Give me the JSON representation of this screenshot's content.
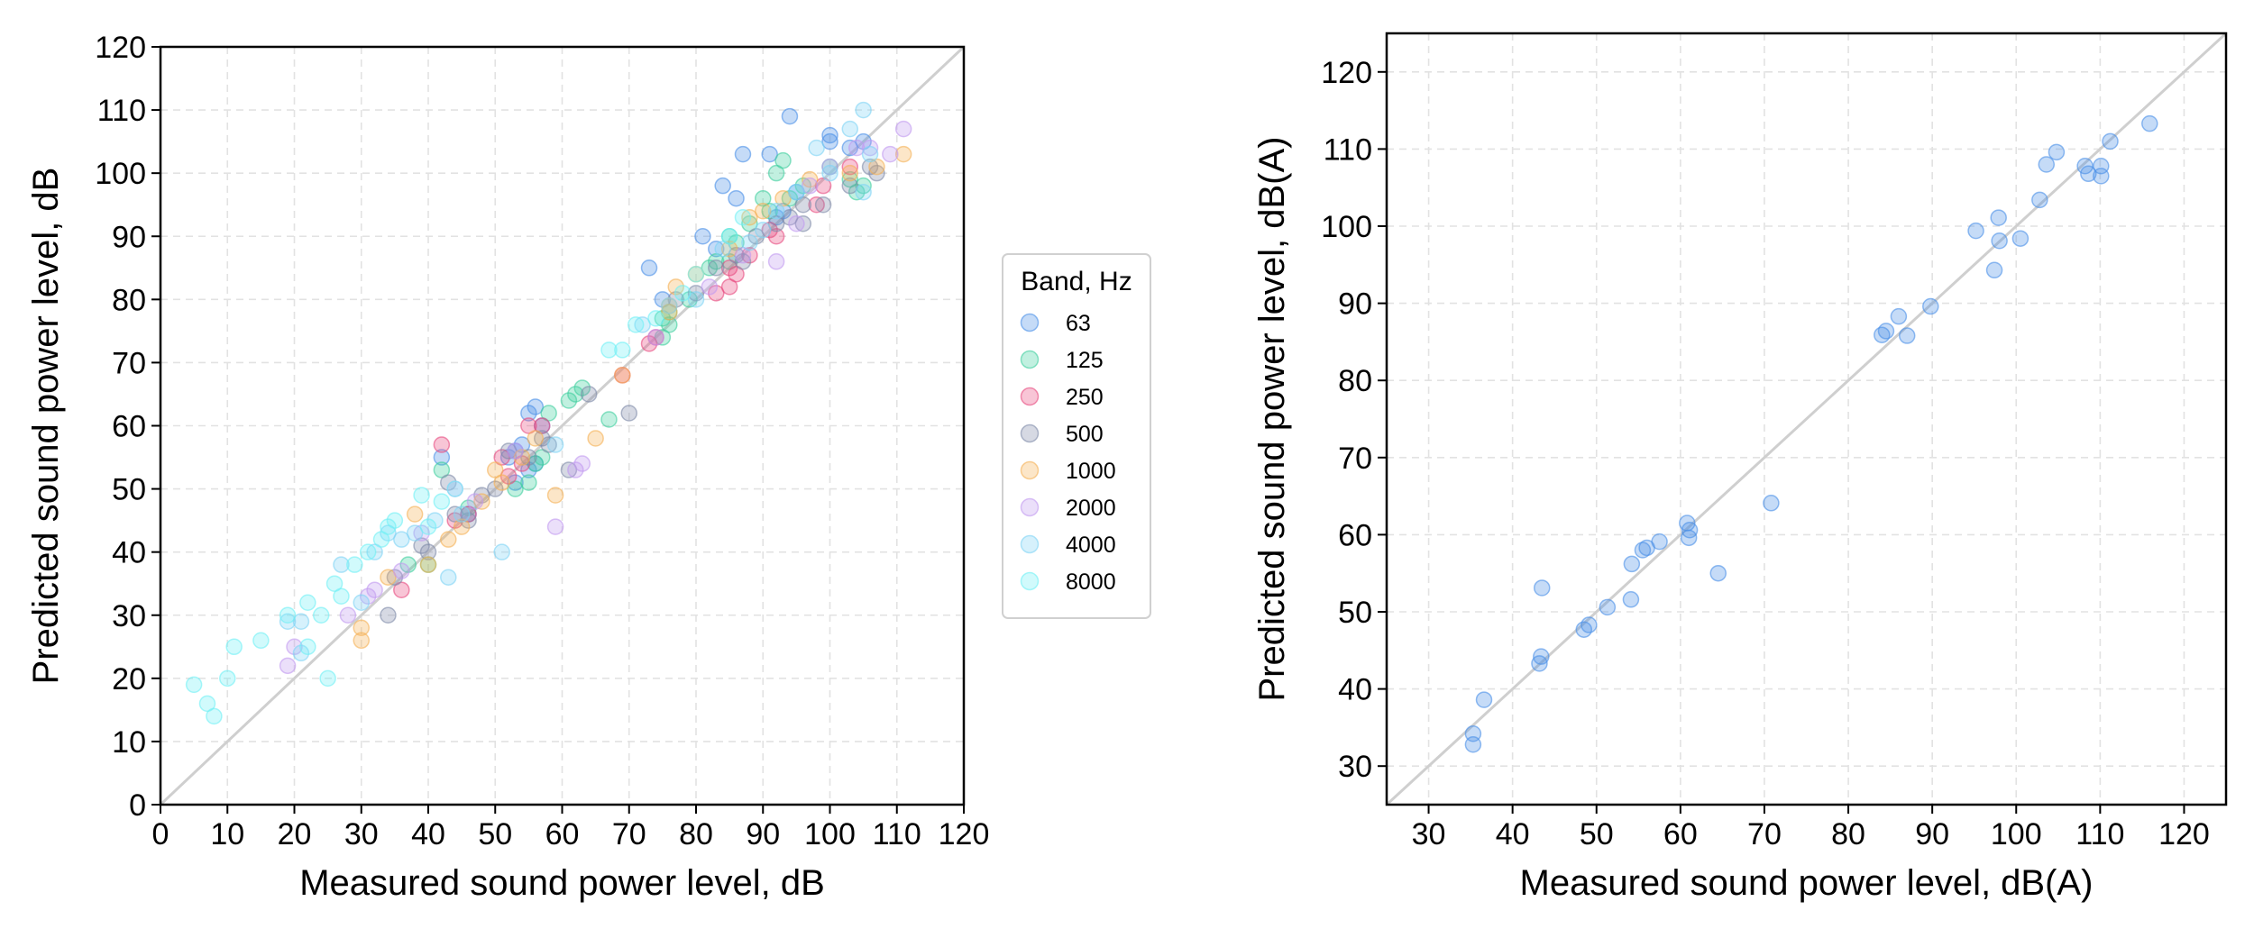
{
  "chart_data": [
    {
      "type": "scatter",
      "xlabel": "Measured sound power level, dB",
      "ylabel": "Predicted sound power level, dB",
      "xlim": [
        0,
        120
      ],
      "ylim": [
        0,
        120
      ],
      "xticks": [
        0,
        10,
        20,
        30,
        40,
        50,
        60,
        70,
        80,
        90,
        100,
        110,
        120
      ],
      "yticks": [
        0,
        10,
        20,
        30,
        40,
        50,
        60,
        70,
        80,
        90,
        100,
        110,
        120
      ],
      "grid": true,
      "reference_line": "y = x",
      "legend": {
        "title": "Band, Hz",
        "placement": "outside-right"
      },
      "series": [
        {
          "name": "63",
          "color": "#4a8fe7",
          "points": [
            [
              55,
              62
            ],
            [
              56,
              63
            ],
            [
              54,
              57
            ],
            [
              53,
              56
            ],
            [
              56,
              54
            ],
            [
              73,
              85
            ],
            [
              75,
              80
            ],
            [
              84,
              98
            ],
            [
              86,
              96
            ],
            [
              87,
              103
            ],
            [
              91,
              103
            ],
            [
              94,
              109
            ],
            [
              100,
              106
            ],
            [
              100,
              105
            ],
            [
              103,
              104
            ],
            [
              105,
              105
            ],
            [
              93,
              94
            ],
            [
              92,
              93
            ],
            [
              95,
              97
            ],
            [
              83,
              88
            ],
            [
              81,
              90
            ],
            [
              57,
              60
            ],
            [
              52,
              55
            ],
            [
              55,
              53
            ],
            [
              42,
              55
            ],
            [
              46,
              46
            ],
            [
              53,
              51
            ]
          ]
        },
        {
          "name": "125",
          "color": "#3fcf9f",
          "points": [
            [
              42,
              53
            ],
            [
              46,
              47
            ],
            [
              55,
              51
            ],
            [
              57,
              55
            ],
            [
              58,
              62
            ],
            [
              61,
              64
            ],
            [
              62,
              65
            ],
            [
              63,
              66
            ],
            [
              67,
              61
            ],
            [
              75,
              77
            ],
            [
              76,
              76
            ],
            [
              79,
              80
            ],
            [
              83,
              86
            ],
            [
              85,
              90
            ],
            [
              86,
              89
            ],
            [
              88,
              92
            ],
            [
              90,
              96
            ],
            [
              92,
              100
            ],
            [
              94,
              96
            ],
            [
              96,
              98
            ],
            [
              100,
              101
            ],
            [
              103,
              99
            ],
            [
              105,
              98
            ],
            [
              104,
              97
            ],
            [
              75,
              74
            ],
            [
              76,
              78
            ],
            [
              82,
              85
            ],
            [
              85,
              86
            ],
            [
              91,
              94
            ],
            [
              93,
              102
            ],
            [
              37,
              38
            ],
            [
              40,
              38
            ],
            [
              53,
              50
            ],
            [
              56,
              54
            ]
          ]
        },
        {
          "name": "250",
          "color": "#e84a7f",
          "points": [
            [
              36,
              34
            ],
            [
              42,
              57
            ],
            [
              44,
              45
            ],
            [
              46,
              46
            ],
            [
              51,
              55
            ],
            [
              52,
              52
            ],
            [
              55,
              60
            ],
            [
              57,
              60
            ],
            [
              69,
              68
            ],
            [
              73,
              73
            ],
            [
              74,
              74
            ],
            [
              83,
              81
            ],
            [
              85,
              82
            ],
            [
              85,
              85
            ],
            [
              88,
              87
            ],
            [
              91,
              91
            ],
            [
              92,
              90
            ],
            [
              98,
              95
            ],
            [
              99,
              98
            ],
            [
              103,
              101
            ],
            [
              86,
              84
            ],
            [
              54,
              54
            ]
          ]
        },
        {
          "name": "500",
          "color": "#7f8aa8",
          "points": [
            [
              34,
              30
            ],
            [
              35,
              36
            ],
            [
              39,
              41
            ],
            [
              40,
              40
            ],
            [
              43,
              51
            ],
            [
              46,
              45
            ],
            [
              50,
              50
            ],
            [
              52,
              56
            ],
            [
              55,
              55
            ],
            [
              57,
              58
            ],
            [
              58,
              57
            ],
            [
              61,
              53
            ],
            [
              64,
              65
            ],
            [
              70,
              62
            ],
            [
              77,
              80
            ],
            [
              80,
              81
            ],
            [
              83,
              85
            ],
            [
              86,
              87
            ],
            [
              87,
              86
            ],
            [
              89,
              90
            ],
            [
              92,
              92
            ],
            [
              96,
              92
            ],
            [
              96,
              95
            ],
            [
              99,
              95
            ],
            [
              103,
              98
            ],
            [
              106,
              101
            ],
            [
              107,
              100
            ],
            [
              94,
              93
            ],
            [
              48,
              49
            ],
            [
              44,
              46
            ]
          ]
        },
        {
          "name": "1000",
          "color": "#f5b055",
          "points": [
            [
              30,
              26
            ],
            [
              30,
              28
            ],
            [
              38,
              46
            ],
            [
              40,
              38
            ],
            [
              43,
              42
            ],
            [
              48,
              48
            ],
            [
              50,
              53
            ],
            [
              51,
              51
            ],
            [
              54,
              55
            ],
            [
              56,
              58
            ],
            [
              59,
              49
            ],
            [
              65,
              58
            ],
            [
              69,
              68
            ],
            [
              76,
              79
            ],
            [
              77,
              82
            ],
            [
              80,
              84
            ],
            [
              85,
              88
            ],
            [
              88,
              93
            ],
            [
              90,
              94
            ],
            [
              93,
              96
            ],
            [
              97,
              99
            ],
            [
              103,
              100
            ],
            [
              107,
              101
            ],
            [
              111,
              103
            ],
            [
              34,
              36
            ],
            [
              45,
              44
            ],
            [
              76,
              78
            ]
          ]
        },
        {
          "name": "2000",
          "color": "#c29af0",
          "points": [
            [
              19,
              22
            ],
            [
              20,
              25
            ],
            [
              28,
              30
            ],
            [
              31,
              33
            ],
            [
              36,
              37
            ],
            [
              39,
              43
            ],
            [
              47,
              48
            ],
            [
              53,
              56
            ],
            [
              59,
              44
            ],
            [
              62,
              53
            ],
            [
              63,
              54
            ],
            [
              74,
              74
            ],
            [
              82,
              82
            ],
            [
              87,
              87
            ],
            [
              92,
              86
            ],
            [
              95,
              92
            ],
            [
              97,
              98
            ],
            [
              100,
              101
            ],
            [
              104,
              104
            ],
            [
              106,
              104
            ],
            [
              109,
              103
            ],
            [
              111,
              107
            ],
            [
              32,
              34
            ],
            [
              44,
              50
            ]
          ]
        },
        {
          "name": "4000",
          "color": "#7fd3f5",
          "points": [
            [
              19,
              29
            ],
            [
              21,
              29
            ],
            [
              21,
              24
            ],
            [
              27,
              38
            ],
            [
              32,
              40
            ],
            [
              36,
              42
            ],
            [
              38,
              43
            ],
            [
              41,
              45
            ],
            [
              43,
              36
            ],
            [
              45,
              46
            ],
            [
              51,
              40
            ],
            [
              59,
              57
            ],
            [
              72,
              76
            ],
            [
              76,
              79
            ],
            [
              80,
              80
            ],
            [
              84,
              88
            ],
            [
              88,
              89
            ],
            [
              90,
              91
            ],
            [
              92,
              94
            ],
            [
              95,
              97
            ],
            [
              98,
              104
            ],
            [
              100,
              100
            ],
            [
              103,
              107
            ],
            [
              105,
              97
            ],
            [
              105,
              110
            ],
            [
              106,
              103
            ],
            [
              30,
              32
            ],
            [
              34,
              43
            ]
          ]
        },
        {
          "name": "8000",
          "color": "#6ff0f5",
          "points": [
            [
              5,
              19
            ],
            [
              7,
              16
            ],
            [
              8,
              14
            ],
            [
              10,
              20
            ],
            [
              11,
              25
            ],
            [
              15,
              26
            ],
            [
              19,
              30
            ],
            [
              22,
              32
            ],
            [
              25,
              20
            ],
            [
              26,
              35
            ],
            [
              27,
              33
            ],
            [
              29,
              38
            ],
            [
              31,
              40
            ],
            [
              34,
              44
            ],
            [
              35,
              45
            ],
            [
              39,
              49
            ],
            [
              40,
              44
            ],
            [
              42,
              48
            ],
            [
              44,
              50
            ],
            [
              67,
              72
            ],
            [
              69,
              72
            ],
            [
              71,
              76
            ],
            [
              74,
              77
            ],
            [
              78,
              81
            ],
            [
              80,
              84
            ],
            [
              85,
              90
            ],
            [
              87,
              93
            ],
            [
              22,
              25
            ],
            [
              33,
              42
            ],
            [
              24,
              30
            ]
          ]
        }
      ]
    },
    {
      "type": "scatter",
      "xlabel": "Measured sound power level, dB(A)",
      "ylabel": "Predicted sound power level, dB(A)",
      "xlim": [
        25,
        125
      ],
      "ylim": [
        25,
        125
      ],
      "xticks": [
        30,
        40,
        50,
        60,
        70,
        80,
        90,
        100,
        110,
        120
      ],
      "yticks": [
        30,
        40,
        50,
        60,
        70,
        80,
        90,
        100,
        110,
        120
      ],
      "grid": true,
      "reference_line": "y = x",
      "series": [
        {
          "color": "#4a8fe7",
          "points": [
            [
              35.3,
              34.2
            ],
            [
              35.3,
              32.8
            ],
            [
              36.6,
              38.6
            ],
            [
              43.2,
              43.3
            ],
            [
              43.4,
              44.2
            ],
            [
              43.5,
              53.1
            ],
            [
              48.5,
              47.7
            ],
            [
              49.1,
              48.3
            ],
            [
              51.3,
              50.6
            ],
            [
              54.1,
              51.6
            ],
            [
              54.2,
              56.2
            ],
            [
              55.5,
              58
            ],
            [
              56,
              58.3
            ],
            [
              57.5,
              59.1
            ],
            [
              60.8,
              61.5
            ],
            [
              61.1,
              60.6
            ],
            [
              61,
              59.6
            ],
            [
              64.5,
              55
            ],
            [
              70.8,
              64.1
            ],
            [
              84,
              85.9
            ],
            [
              84.5,
              86.4
            ],
            [
              86,
              88.3
            ],
            [
              87,
              85.8
            ],
            [
              89.8,
              89.6
            ],
            [
              95.2,
              99.4
            ],
            [
              97.4,
              94.3
            ],
            [
              97.9,
              101.1
            ],
            [
              98,
              98.1
            ],
            [
              100.5,
              98.4
            ],
            [
              102.8,
              103.4
            ],
            [
              103.6,
              108
            ],
            [
              104.8,
              109.6
            ],
            [
              108.2,
              107.8
            ],
            [
              108.6,
              106.8
            ],
            [
              110.1,
              106.5
            ],
            [
              110.1,
              107.8
            ],
            [
              111.2,
              111
            ],
            [
              115.9,
              113.3
            ]
          ]
        }
      ]
    }
  ]
}
